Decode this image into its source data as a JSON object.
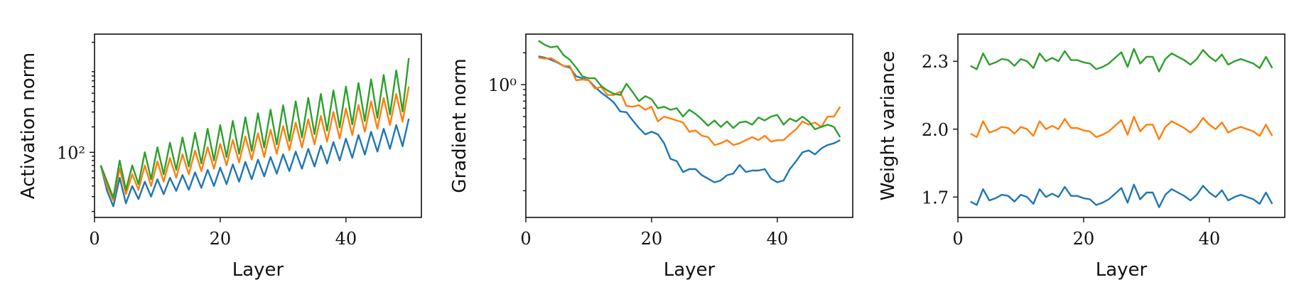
{
  "colors": {
    "blue": "#1f77b4",
    "orange": "#ff7f0e",
    "green": "#2ca02c"
  },
  "chart_data": [
    {
      "type": "line",
      "xlabel": "Layer",
      "ylabel": "Activation norm",
      "yscale": "log",
      "xlim": [
        0,
        52
      ],
      "ylim": [
        17,
        2500
      ],
      "xticks": [
        0,
        20,
        40
      ],
      "xtick_labels": [
        "0",
        "20",
        "40"
      ],
      "yticks": [
        100
      ],
      "ytick_labels": [
        "10²"
      ],
      "ytick_minor": [
        20,
        30,
        40,
        50,
        60,
        70,
        80,
        90,
        200,
        300,
        400,
        500,
        600,
        700,
        800,
        900,
        2000
      ],
      "grid": false,
      "x": [
        1,
        2,
        3,
        4,
        5,
        6,
        7,
        8,
        9,
        10,
        11,
        12,
        13,
        14,
        15,
        16,
        17,
        18,
        19,
        20,
        21,
        22,
        23,
        24,
        25,
        26,
        27,
        28,
        29,
        30,
        31,
        32,
        33,
        34,
        35,
        36,
        37,
        38,
        39,
        40,
        41,
        42,
        43,
        44,
        45,
        46,
        47,
        48,
        49,
        50
      ],
      "series": [
        {
          "color": "blue",
          "values": [
            70,
            35,
            23,
            50,
            25,
            40,
            28,
            45,
            30,
            48,
            32,
            50,
            35,
            54,
            36,
            58,
            38,
            62,
            40,
            66,
            42,
            72,
            45,
            77,
            48,
            82,
            52,
            88,
            56,
            95,
            60,
            102,
            64,
            110,
            68,
            120,
            74,
            132,
            80,
            145,
            86,
            160,
            94,
            175,
            102,
            190,
            110,
            210,
            118,
            250
          ]
        },
        {
          "color": "orange",
          "values": [
            70,
            40,
            27,
            65,
            32,
            55,
            36,
            70,
            40,
            78,
            45,
            86,
            50,
            95,
            55,
            105,
            60,
            115,
            64,
            126,
            70,
            140,
            76,
            154,
            82,
            168,
            88,
            185,
            96,
            205,
            106,
            225,
            114,
            245,
            124,
            270,
            134,
            300,
            146,
            330,
            160,
            365,
            175,
            400,
            190,
            440,
            210,
            490,
            230,
            600
          ]
        },
        {
          "color": "green",
          "values": [
            70,
            45,
            29,
            80,
            36,
            70,
            42,
            100,
            48,
            115,
            55,
            130,
            62,
            150,
            68,
            170,
            74,
            190,
            80,
            210,
            88,
            235,
            96,
            260,
            104,
            290,
            114,
            320,
            124,
            360,
            136,
            400,
            150,
            440,
            164,
            490,
            180,
            540,
            196,
            600,
            214,
            660,
            234,
            730,
            256,
            820,
            280,
            930,
            305,
            1300
          ]
        }
      ]
    },
    {
      "type": "line",
      "xlabel": "Layer",
      "ylabel": "Gradient norm",
      "yscale": "log",
      "xlim": [
        0,
        52
      ],
      "ylim": [
        0.056,
        3.0
      ],
      "xticks": [
        0,
        20,
        40
      ],
      "xtick_labels": [
        "0",
        "20",
        "40"
      ],
      "yticks": [
        1.0
      ],
      "ytick_labels": [
        "10⁰"
      ],
      "ytick_minor": [
        0.1,
        0.2,
        0.3,
        0.4,
        0.5,
        0.6,
        0.7,
        0.8,
        0.9,
        2.0
      ],
      "grid": false,
      "x": [
        2,
        3,
        4,
        5,
        6,
        7,
        8,
        9,
        10,
        11,
        12,
        13,
        14,
        15,
        16,
        17,
        18,
        19,
        20,
        21,
        22,
        23,
        24,
        25,
        26,
        27,
        28,
        29,
        30,
        31,
        32,
        33,
        34,
        35,
        36,
        37,
        38,
        39,
        40,
        41,
        42,
        43,
        44,
        45,
        46,
        47,
        48,
        49,
        50
      ],
      "series": [
        {
          "color": "blue",
          "values": [
            1.85,
            1.8,
            1.72,
            1.62,
            1.5,
            1.45,
            1.2,
            1.15,
            1.1,
            0.95,
            0.84,
            0.76,
            0.68,
            0.56,
            0.55,
            0.46,
            0.39,
            0.34,
            0.36,
            0.34,
            0.28,
            0.2,
            0.19,
            0.15,
            0.16,
            0.16,
            0.14,
            0.13,
            0.12,
            0.125,
            0.14,
            0.145,
            0.175,
            0.15,
            0.155,
            0.155,
            0.16,
            0.13,
            0.12,
            0.125,
            0.16,
            0.19,
            0.23,
            0.24,
            0.22,
            0.25,
            0.27,
            0.28,
            0.3
          ]
        },
        {
          "color": "orange",
          "values": [
            1.8,
            1.76,
            1.78,
            1.64,
            1.5,
            1.5,
            1.1,
            1.12,
            1.1,
            0.92,
            0.95,
            0.8,
            0.8,
            0.86,
            0.63,
            0.62,
            0.64,
            0.58,
            0.62,
            0.45,
            0.5,
            0.48,
            0.46,
            0.44,
            0.36,
            0.37,
            0.33,
            0.32,
            0.27,
            0.28,
            0.3,
            0.27,
            0.28,
            0.3,
            0.32,
            0.3,
            0.33,
            0.29,
            0.3,
            0.3,
            0.34,
            0.38,
            0.45,
            0.42,
            0.44,
            0.4,
            0.5,
            0.5,
            0.62
          ]
        },
        {
          "color": "green",
          "values": [
            2.6,
            2.38,
            2.25,
            2.3,
            1.9,
            1.72,
            1.45,
            1.2,
            1.15,
            1.15,
            0.97,
            0.88,
            0.82,
            0.8,
            1.02,
            0.85,
            0.7,
            0.78,
            0.73,
            0.6,
            0.62,
            0.58,
            0.6,
            0.5,
            0.58,
            0.53,
            0.47,
            0.41,
            0.46,
            0.4,
            0.45,
            0.39,
            0.44,
            0.45,
            0.42,
            0.49,
            0.46,
            0.5,
            0.52,
            0.42,
            0.48,
            0.45,
            0.5,
            0.45,
            0.38,
            0.4,
            0.42,
            0.4,
            0.32
          ]
        }
      ]
    },
    {
      "type": "line",
      "xlabel": "Layer",
      "ylabel": "Weight variance",
      "yscale": "linear",
      "xlim": [
        0,
        52
      ],
      "ylim": [
        1.61,
        2.42
      ],
      "xticks": [
        0,
        20,
        40
      ],
      "xtick_labels": [
        "0",
        "20",
        "40"
      ],
      "yticks": [
        1.7,
        2.0,
        2.3
      ],
      "ytick_labels": [
        "1.7",
        "2.0",
        "2.3"
      ],
      "grid": false,
      "x": [
        2,
        3,
        4,
        5,
        6,
        7,
        8,
        9,
        10,
        11,
        12,
        13,
        14,
        15,
        16,
        17,
        18,
        19,
        20,
        21,
        22,
        23,
        24,
        25,
        26,
        27,
        28,
        29,
        30,
        31,
        32,
        33,
        34,
        35,
        36,
        37,
        38,
        39,
        40,
        41,
        42,
        43,
        44,
        45,
        46,
        47,
        48,
        49,
        50
      ],
      "series": [
        {
          "color": "blue",
          "values": [
            1.68,
            1.665,
            1.735,
            1.685,
            1.695,
            1.71,
            1.705,
            1.68,
            1.71,
            1.7,
            1.67,
            1.735,
            1.7,
            1.715,
            1.7,
            1.745,
            1.705,
            1.705,
            1.695,
            1.69,
            1.665,
            1.675,
            1.69,
            1.715,
            1.74,
            1.675,
            1.755,
            1.69,
            1.72,
            1.72,
            1.655,
            1.71,
            1.735,
            1.72,
            1.705,
            1.685,
            1.71,
            1.75,
            1.72,
            1.7,
            1.73,
            1.685,
            1.7,
            1.71,
            1.7,
            1.69,
            1.67,
            1.72,
            1.67
          ]
        },
        {
          "color": "orange",
          "values": [
            1.98,
            1.965,
            2.035,
            1.985,
            1.995,
            2.01,
            2.005,
            1.98,
            2.01,
            2.0,
            1.97,
            2.035,
            2.0,
            2.015,
            2.0,
            2.045,
            2.005,
            2.005,
            1.995,
            1.99,
            1.965,
            1.975,
            1.99,
            2.015,
            2.04,
            1.975,
            2.055,
            1.99,
            2.02,
            2.02,
            1.955,
            2.01,
            2.035,
            2.02,
            2.005,
            1.985,
            2.01,
            2.05,
            2.02,
            2.0,
            2.03,
            1.985,
            2.0,
            2.01,
            2.0,
            1.99,
            1.97,
            2.02,
            1.97
          ]
        },
        {
          "color": "green",
          "values": [
            2.28,
            2.265,
            2.335,
            2.285,
            2.295,
            2.31,
            2.305,
            2.28,
            2.31,
            2.3,
            2.27,
            2.335,
            2.3,
            2.315,
            2.3,
            2.345,
            2.305,
            2.305,
            2.295,
            2.29,
            2.265,
            2.275,
            2.29,
            2.315,
            2.34,
            2.275,
            2.355,
            2.29,
            2.32,
            2.32,
            2.255,
            2.31,
            2.335,
            2.32,
            2.305,
            2.285,
            2.31,
            2.35,
            2.32,
            2.3,
            2.33,
            2.285,
            2.3,
            2.31,
            2.3,
            2.29,
            2.27,
            2.32,
            2.27
          ]
        }
      ]
    }
  ]
}
